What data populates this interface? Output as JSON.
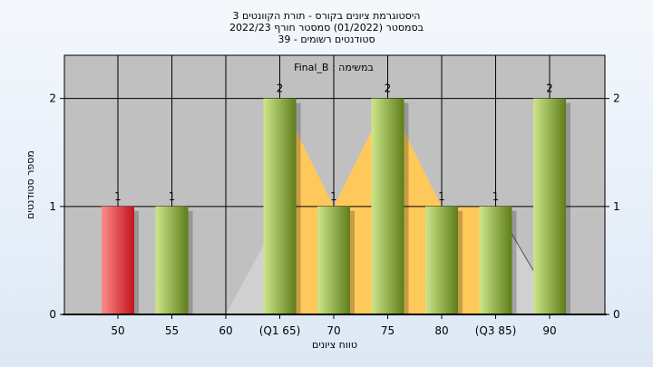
{
  "title_lines": [
    "היסטוגרמת ציונים בקורס - תורת הקוונטים 3",
    "בסמסטר  (01/2022)  סמסטר חורף  2022/23",
    "39 - סטודנטים רשומים"
  ],
  "annotation": "Final_B : במשימה",
  "colors": {
    "plot_bg": "#c0c0c0",
    "area_fill": "#ffc85a",
    "bar_green_light": "#cde68a",
    "bar_green_dark": "#5e7d1a",
    "bar_red_light": "#ff8a8a",
    "bar_red_dark": "#c2141c"
  },
  "chart_data": {
    "type": "bar",
    "categories": [
      "50",
      "55",
      "60",
      "(Q1 65)",
      "70",
      "75",
      "80",
      "(Q3 85)",
      "90"
    ],
    "values": [
      1,
      1,
      0,
      2,
      1,
      2,
      1,
      1,
      2
    ],
    "data_labels": [
      "1",
      "1",
      "",
      "2",
      "1",
      "2",
      "1",
      "1",
      "2"
    ],
    "highlight": [
      true,
      false,
      false,
      false,
      false,
      false,
      false,
      false,
      false
    ],
    "xlabel": "טווח ציונים",
    "ylabel": "מספר סטודנטים",
    "ylim": [
      0,
      2.4
    ],
    "yticks": [
      0,
      1,
      2
    ],
    "y_right_axis": true,
    "grid": true,
    "iqr_area": {
      "from_category": "(Q1 65)",
      "to_category": "(Q3 85)",
      "overlay": "filled area between the quartile markers, following the bar heights"
    }
  }
}
